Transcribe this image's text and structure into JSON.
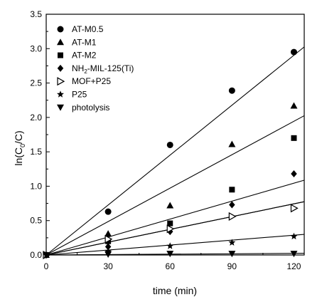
{
  "chart_data": {
    "type": "scatter",
    "xlabel": "time (min)",
    "ylabel_parts": [
      "ln(C",
      "0",
      "/C)"
    ],
    "xlim": [
      0,
      125
    ],
    "ylim": [
      0,
      3.5
    ],
    "x_ticks": [
      0,
      30,
      60,
      90,
      120
    ],
    "y_ticks": [
      0.0,
      0.5,
      1.0,
      1.5,
      2.0,
      2.5,
      3.0,
      3.5
    ],
    "x_tick_labels": [
      "0",
      "30",
      "60",
      "90",
      "120"
    ],
    "y_tick_labels": [
      "0.0",
      "0.5",
      "1.0",
      "1.5",
      "2.0",
      "2.5",
      "3.0",
      "3.5"
    ],
    "legend_position": "top-left",
    "series": [
      {
        "name": "AT-M0.5",
        "marker": "circle",
        "x": [
          0,
          30,
          60,
          90,
          120
        ],
        "y": [
          0,
          0.63,
          1.6,
          2.39,
          2.95
        ],
        "fit_slope": 0.0242
      },
      {
        "name": "AT-M1",
        "marker": "triangle-up",
        "x": [
          0,
          30,
          60,
          90,
          120
        ],
        "y": [
          0,
          0.31,
          0.72,
          1.61,
          2.17
        ],
        "fit_slope": 0.0162
      },
      {
        "name": "AT-M2",
        "marker": "square",
        "x": [
          0,
          30,
          60,
          90,
          120
        ],
        "y": [
          0,
          0.2,
          0.46,
          0.95,
          1.7
        ],
        "fit_slope": 0.0087
      },
      {
        "name_parts": [
          "NH",
          "2",
          "-MIL-125(Ti)"
        ],
        "marker": "diamond",
        "x": [
          0,
          30,
          60,
          90,
          120
        ],
        "y": [
          0,
          0.12,
          0.34,
          0.73,
          1.18
        ],
        "fit_slope": 0.0062
      },
      {
        "name": "MOF+P25",
        "marker": "triangle-right-open",
        "x": [
          0,
          30,
          60,
          90,
          120
        ],
        "y": [
          0,
          0.23,
          0.38,
          0.56,
          0.68
        ],
        "fit_slope": 0.0062
      },
      {
        "name": "P25",
        "marker": "star",
        "x": [
          0,
          30,
          60,
          90,
          120
        ],
        "y": [
          0,
          0.05,
          0.13,
          0.18,
          0.27
        ],
        "fit_slope": 0.0024
      },
      {
        "name": "photolysis",
        "marker": "triangle-down",
        "x": [
          0,
          30,
          60,
          90,
          120
        ],
        "y": [
          0,
          0.01,
          0.02,
          0.02,
          0.02
        ],
        "fit_slope": 0.0002
      }
    ]
  }
}
